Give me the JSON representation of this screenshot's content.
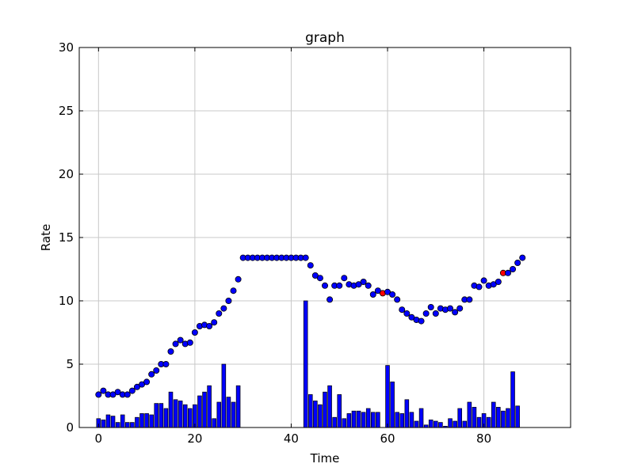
{
  "chart_data": {
    "type": "bar+scatter",
    "title": "graph",
    "xlabel": "Time",
    "ylabel": "Rate",
    "xlim": [
      -4,
      98
    ],
    "ylim": [
      0,
      30
    ],
    "x_ticks": [
      0,
      20,
      40,
      60,
      80
    ],
    "y_ticks": [
      0,
      5,
      10,
      15,
      20,
      25,
      30
    ],
    "grid": true,
    "colors": {
      "bars": "#0000ff",
      "points": "#0000ff",
      "highlight_points": "#ff0000",
      "edge": "#000000",
      "grid": "#c8c8c8"
    },
    "bars": [
      {
        "x": 0,
        "y": 0.7
      },
      {
        "x": 1,
        "y": 0.6
      },
      {
        "x": 2,
        "y": 1.0
      },
      {
        "x": 3,
        "y": 0.9
      },
      {
        "x": 4,
        "y": 0.4
      },
      {
        "x": 5,
        "y": 1.0
      },
      {
        "x": 6,
        "y": 0.4
      },
      {
        "x": 7,
        "y": 0.4
      },
      {
        "x": 8,
        "y": 0.8
      },
      {
        "x": 9,
        "y": 1.1
      },
      {
        "x": 10,
        "y": 1.1
      },
      {
        "x": 11,
        "y": 1.0
      },
      {
        "x": 12,
        "y": 1.9
      },
      {
        "x": 13,
        "y": 1.9
      },
      {
        "x": 14,
        "y": 1.5
      },
      {
        "x": 15,
        "y": 2.8
      },
      {
        "x": 16,
        "y": 2.2
      },
      {
        "x": 17,
        "y": 2.1
      },
      {
        "x": 18,
        "y": 1.8
      },
      {
        "x": 19,
        "y": 1.5
      },
      {
        "x": 20,
        "y": 1.8
      },
      {
        "x": 21,
        "y": 2.5
      },
      {
        "x": 22,
        "y": 2.8
      },
      {
        "x": 23,
        "y": 3.3
      },
      {
        "x": 24,
        "y": 0.7
      },
      {
        "x": 25,
        "y": 2.0
      },
      {
        "x": 26,
        "y": 5.0
      },
      {
        "x": 27,
        "y": 2.4
      },
      {
        "x": 28,
        "y": 2.0
      },
      {
        "x": 29,
        "y": 3.3
      },
      {
        "x": 43,
        "y": 10.0
      },
      {
        "x": 44,
        "y": 2.6
      },
      {
        "x": 45,
        "y": 2.1
      },
      {
        "x": 46,
        "y": 1.8
      },
      {
        "x": 47,
        "y": 2.8
      },
      {
        "x": 48,
        "y": 3.3
      },
      {
        "x": 49,
        "y": 0.8
      },
      {
        "x": 50,
        "y": 2.6
      },
      {
        "x": 51,
        "y": 0.7
      },
      {
        "x": 52,
        "y": 1.1
      },
      {
        "x": 53,
        "y": 1.3
      },
      {
        "x": 54,
        "y": 1.3
      },
      {
        "x": 55,
        "y": 1.2
      },
      {
        "x": 56,
        "y": 1.5
      },
      {
        "x": 57,
        "y": 1.2
      },
      {
        "x": 58,
        "y": 1.2
      },
      {
        "x": 60,
        "y": 4.9
      },
      {
        "x": 61,
        "y": 3.6
      },
      {
        "x": 62,
        "y": 1.2
      },
      {
        "x": 63,
        "y": 1.1
      },
      {
        "x": 64,
        "y": 2.2
      },
      {
        "x": 65,
        "y": 1.2
      },
      {
        "x": 66,
        "y": 0.5
      },
      {
        "x": 67,
        "y": 1.5
      },
      {
        "x": 68,
        "y": 0.2
      },
      {
        "x": 69,
        "y": 0.6
      },
      {
        "x": 70,
        "y": 0.5
      },
      {
        "x": 71,
        "y": 0.4
      },
      {
        "x": 72,
        "y": 0.1
      },
      {
        "x": 73,
        "y": 0.7
      },
      {
        "x": 74,
        "y": 0.5
      },
      {
        "x": 75,
        "y": 1.5
      },
      {
        "x": 76,
        "y": 0.5
      },
      {
        "x": 77,
        "y": 2.0
      },
      {
        "x": 78,
        "y": 1.6
      },
      {
        "x": 79,
        "y": 0.8
      },
      {
        "x": 80,
        "y": 1.1
      },
      {
        "x": 81,
        "y": 0.8
      },
      {
        "x": 82,
        "y": 2.0
      },
      {
        "x": 83,
        "y": 1.6
      },
      {
        "x": 84,
        "y": 1.3
      },
      {
        "x": 85,
        "y": 1.5
      },
      {
        "x": 86,
        "y": 4.4
      },
      {
        "x": 87,
        "y": 1.7
      }
    ],
    "points": [
      {
        "x": 0,
        "y": 2.6
      },
      {
        "x": 1,
        "y": 2.9
      },
      {
        "x": 2,
        "y": 2.6
      },
      {
        "x": 3,
        "y": 2.6
      },
      {
        "x": 4,
        "y": 2.8
      },
      {
        "x": 5,
        "y": 2.6
      },
      {
        "x": 6,
        "y": 2.6
      },
      {
        "x": 7,
        "y": 2.9
      },
      {
        "x": 8,
        "y": 3.2
      },
      {
        "x": 9,
        "y": 3.4
      },
      {
        "x": 10,
        "y": 3.6
      },
      {
        "x": 11,
        "y": 4.2
      },
      {
        "x": 12,
        "y": 4.5
      },
      {
        "x": 13,
        "y": 5.0
      },
      {
        "x": 14,
        "y": 5.0
      },
      {
        "x": 15,
        "y": 6.0
      },
      {
        "x": 16,
        "y": 6.6
      },
      {
        "x": 17,
        "y": 6.9
      },
      {
        "x": 18,
        "y": 6.6
      },
      {
        "x": 19,
        "y": 6.7
      },
      {
        "x": 20,
        "y": 7.5
      },
      {
        "x": 21,
        "y": 8.0
      },
      {
        "x": 22,
        "y": 8.1
      },
      {
        "x": 23,
        "y": 8.0
      },
      {
        "x": 24,
        "y": 8.3
      },
      {
        "x": 25,
        "y": 9.0
      },
      {
        "x": 26,
        "y": 9.4
      },
      {
        "x": 27,
        "y": 10.0
      },
      {
        "x": 28,
        "y": 10.8
      },
      {
        "x": 29,
        "y": 11.7
      },
      {
        "x": 30,
        "y": 13.4
      },
      {
        "x": 31,
        "y": 13.4
      },
      {
        "x": 32,
        "y": 13.4
      },
      {
        "x": 33,
        "y": 13.4
      },
      {
        "x": 34,
        "y": 13.4
      },
      {
        "x": 35,
        "y": 13.4
      },
      {
        "x": 36,
        "y": 13.4
      },
      {
        "x": 37,
        "y": 13.4
      },
      {
        "x": 38,
        "y": 13.4
      },
      {
        "x": 39,
        "y": 13.4
      },
      {
        "x": 40,
        "y": 13.4
      },
      {
        "x": 41,
        "y": 13.4
      },
      {
        "x": 42,
        "y": 13.4
      },
      {
        "x": 43,
        "y": 13.4
      },
      {
        "x": 44,
        "y": 12.8
      },
      {
        "x": 45,
        "y": 12.0
      },
      {
        "x": 46,
        "y": 11.8
      },
      {
        "x": 47,
        "y": 11.2
      },
      {
        "x": 48,
        "y": 10.1
      },
      {
        "x": 49,
        "y": 11.2
      },
      {
        "x": 50,
        "y": 11.2
      },
      {
        "x": 51,
        "y": 11.8
      },
      {
        "x": 52,
        "y": 11.3
      },
      {
        "x": 53,
        "y": 11.2
      },
      {
        "x": 54,
        "y": 11.3
      },
      {
        "x": 55,
        "y": 11.5
      },
      {
        "x": 56,
        "y": 11.2
      },
      {
        "x": 57,
        "y": 10.5
      },
      {
        "x": 58,
        "y": 10.8
      },
      {
        "x": 59,
        "y": 10.6,
        "highlight": true
      },
      {
        "x": 60,
        "y": 10.7
      },
      {
        "x": 61,
        "y": 10.5
      },
      {
        "x": 62,
        "y": 10.1
      },
      {
        "x": 63,
        "y": 9.3
      },
      {
        "x": 64,
        "y": 9.0
      },
      {
        "x": 65,
        "y": 8.7
      },
      {
        "x": 66,
        "y": 8.5
      },
      {
        "x": 67,
        "y": 8.4
      },
      {
        "x": 68,
        "y": 9.0
      },
      {
        "x": 69,
        "y": 9.5
      },
      {
        "x": 70,
        "y": 9.0
      },
      {
        "x": 71,
        "y": 9.4
      },
      {
        "x": 72,
        "y": 9.3
      },
      {
        "x": 73,
        "y": 9.4
      },
      {
        "x": 74,
        "y": 9.1
      },
      {
        "x": 75,
        "y": 9.4
      },
      {
        "x": 76,
        "y": 10.1
      },
      {
        "x": 77,
        "y": 10.1
      },
      {
        "x": 78,
        "y": 11.2
      },
      {
        "x": 79,
        "y": 11.1
      },
      {
        "x": 80,
        "y": 11.6
      },
      {
        "x": 81,
        "y": 11.2
      },
      {
        "x": 82,
        "y": 11.3
      },
      {
        "x": 83,
        "y": 11.5
      },
      {
        "x": 84,
        "y": 12.2,
        "highlight": true
      },
      {
        "x": 85,
        "y": 12.2
      },
      {
        "x": 86,
        "y": 12.5
      },
      {
        "x": 87,
        "y": 13.0
      },
      {
        "x": 88,
        "y": 13.4
      }
    ]
  }
}
